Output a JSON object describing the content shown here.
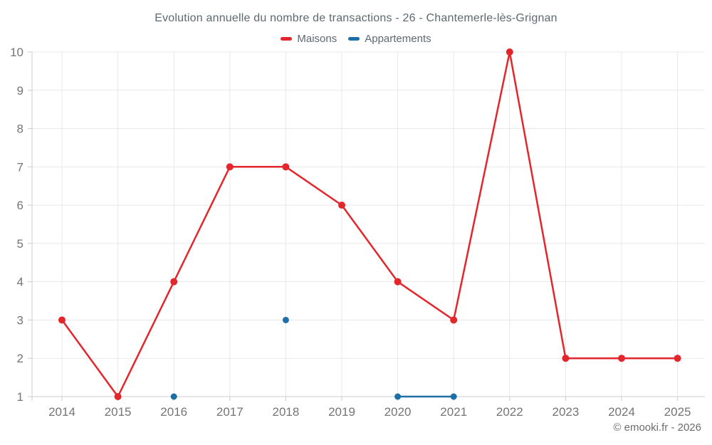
{
  "page": {
    "watermark": "© emooki.fr - 2026"
  },
  "chart_data": {
    "type": "line",
    "title": "Evolution annuelle du nombre de transactions - 26 - Chantemerle-lès-Grignan",
    "xlabel": "",
    "ylabel": "",
    "categories": [
      "2014",
      "2015",
      "2016",
      "2017",
      "2018",
      "2019",
      "2020",
      "2021",
      "2022",
      "2023",
      "2024",
      "2025"
    ],
    "series": [
      {
        "name": "Maisons",
        "color": "#e3262c",
        "values": [
          3,
          1,
          4,
          7,
          7,
          6,
          4,
          3,
          10,
          2,
          2,
          2
        ]
      },
      {
        "name": "Appartements",
        "color": "#1d6fa5",
        "values": [
          null,
          null,
          1,
          null,
          3,
          null,
          1,
          1,
          null,
          null,
          null,
          null
        ]
      }
    ],
    "ylim": [
      1,
      10
    ],
    "y_ticks": [
      1,
      2,
      3,
      4,
      5,
      6,
      7,
      8,
      9,
      10
    ],
    "grid": true,
    "legend_position": "top",
    "colors": {
      "grid_line": "#e8e8e8",
      "axis_line": "#cccccc",
      "tick_label": "#757575",
      "title_text": "#5d686f",
      "watermark_text": "#6c6c6c"
    }
  }
}
